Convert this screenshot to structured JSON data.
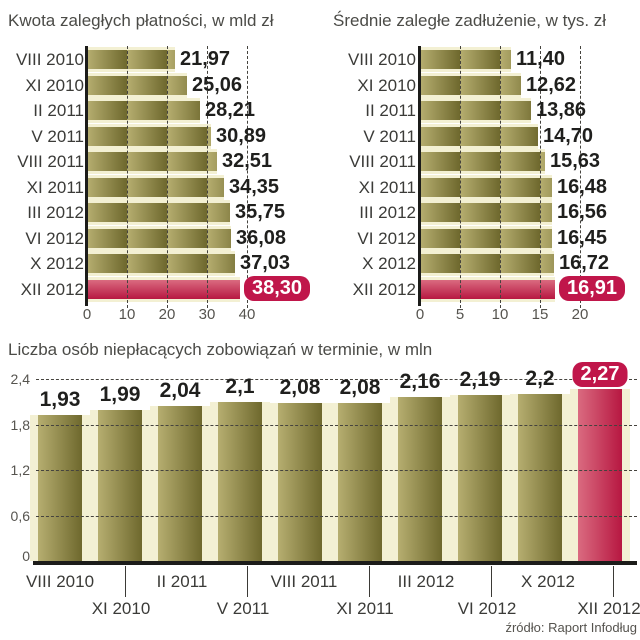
{
  "colors": {
    "background": "#ffffff",
    "bar_olive_light": "#b6ae70",
    "bar_olive_dark": "#6e682d",
    "bar_red_light": "#da6b80",
    "bar_red_dark": "#b71741",
    "badge_red": "#c0164a",
    "badge_text": "#ffffff",
    "cream_bevel": "#f3f0d3",
    "grid_line": "#45433e",
    "axis_line": "#1c1c1a",
    "title_text": "#4b4b47",
    "category_text": "#3b3b38",
    "value_text": "#1f1f1d",
    "tick_text": "#56544f"
  },
  "chart_data": [
    {
      "type": "bar",
      "orientation": "horizontal",
      "title": "Kwota zaległych płatności, w mld zł",
      "categories": [
        "VIII 2010",
        "XI 2010",
        "II 2011",
        "V 2011",
        "VIII 2011",
        "XI 2011",
        "III 2012",
        "VI 2012",
        "X 2012",
        "XII 2012"
      ],
      "values": [
        21.97,
        25.06,
        28.21,
        30.89,
        32.51,
        34.35,
        35.75,
        36.08,
        37.03,
        38.3
      ],
      "value_labels": [
        "21,97",
        "25,06",
        "28,21",
        "30,89",
        "32,51",
        "34,35",
        "35,75",
        "36,08",
        "37,03",
        "38,30"
      ],
      "x_ticks": [
        "0",
        "10",
        "20",
        "30",
        "40"
      ],
      "xlim": [
        0,
        40
      ],
      "grid": true,
      "legend": false,
      "highlight_index": 9
    },
    {
      "type": "bar",
      "orientation": "horizontal",
      "title": "Średnie zaległe zadłużenie, w tys. zł",
      "categories": [
        "VIII 2010",
        "XI 2010",
        "II 2011",
        "V 2011",
        "VIII 2011",
        "XI 2011",
        "III 2012",
        "VI 2012",
        "X 2012",
        "XII 2012"
      ],
      "values": [
        11.4,
        12.62,
        13.86,
        14.7,
        15.63,
        16.48,
        16.56,
        16.45,
        16.72,
        16.91
      ],
      "value_labels": [
        "11,40",
        "12,62",
        "13,86",
        "14,70",
        "15,63",
        "16,48",
        "16,56",
        "16,45",
        "16,72",
        "16,91"
      ],
      "x_ticks": [
        "0",
        "5",
        "10",
        "15",
        "20"
      ],
      "xlim": [
        0,
        20
      ],
      "grid": true,
      "legend": false,
      "highlight_index": 9
    },
    {
      "type": "bar",
      "orientation": "vertical",
      "title": "Liczba osób niepłacących zobowiązań w terminie, w mln",
      "categories": [
        "VIII 2010",
        "XI 2010",
        "II 2011",
        "V 2011",
        "VIII 2011",
        "XI 2011",
        "III 2012",
        "VI 2012",
        "X 2012",
        "XII 2012"
      ],
      "values": [
        1.93,
        1.99,
        2.04,
        2.1,
        2.08,
        2.08,
        2.16,
        2.19,
        2.2,
        2.27
      ],
      "value_labels": [
        "1,93",
        "1,99",
        "2,04",
        "2,1",
        "2,08",
        "2,08",
        "2,16",
        "2,19",
        "2,2",
        "2,27"
      ],
      "y_ticks": [
        "2,4",
        "1,8",
        "1,2",
        "0,6",
        "0"
      ],
      "y_tick_values": [
        2.4,
        1.8,
        1.2,
        0.6,
        0
      ],
      "ylim": [
        0,
        2.4
      ],
      "grid": true,
      "legend": false,
      "highlight_index": 9,
      "x_label_rows": [
        [
          "VIII 2010",
          "II 2011",
          "VIII 2011",
          "III 2012",
          "X 2012"
        ],
        [
          "XI 2010",
          "V 2011",
          "XI 2011",
          "VI 2012",
          "XII 2012"
        ]
      ],
      "source": "źródło: Raport Infodług"
    }
  ]
}
